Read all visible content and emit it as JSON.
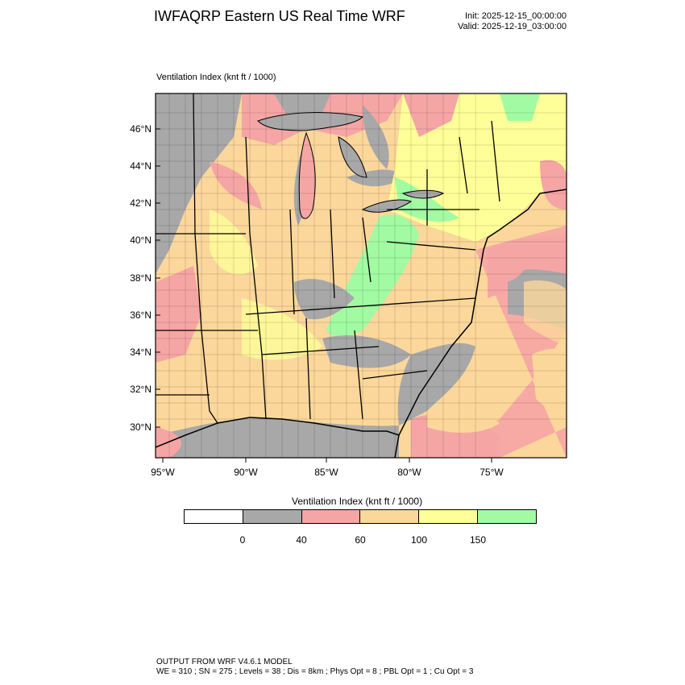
{
  "header": {
    "title": "IWFAQRP Eastern US Real Time WRF",
    "init": "Init: 2025-12-15_00:00:00",
    "valid": "Valid: 2025-12-19_03:00:00"
  },
  "map": {
    "field_label": "Ventilation Index   (knt ft / 1000)",
    "lat_labels": [
      "46°N",
      "44°N",
      "42°N",
      "40°N",
      "38°N",
      "36°N",
      "34°N",
      "32°N",
      "30°N"
    ],
    "lon_labels": [
      "95°W",
      "90°W",
      "85°W",
      "80°W",
      "75°W"
    ],
    "frame_color": "#000000",
    "ocean_color": "#fddea0"
  },
  "colorbar": {
    "title": "Ventilation Index  (knt ft / 1000)",
    "colors": [
      "#ffffff",
      "#a8a8a8",
      "#f6a5a5",
      "#fbd79b",
      "#ffff99",
      "#a2fba3"
    ],
    "ticks": [
      "0",
      "40",
      "60",
      "100",
      "150"
    ]
  },
  "footer": {
    "line1": "OUTPUT FROM WRF V4.6.1 MODEL",
    "line2": "WE = 310 ; SN = 275 ; Levels = 38 ; Dis = 8km ; Phys Opt = 8 ; PBL Opt = 1 ; Cu Opt = 3"
  }
}
